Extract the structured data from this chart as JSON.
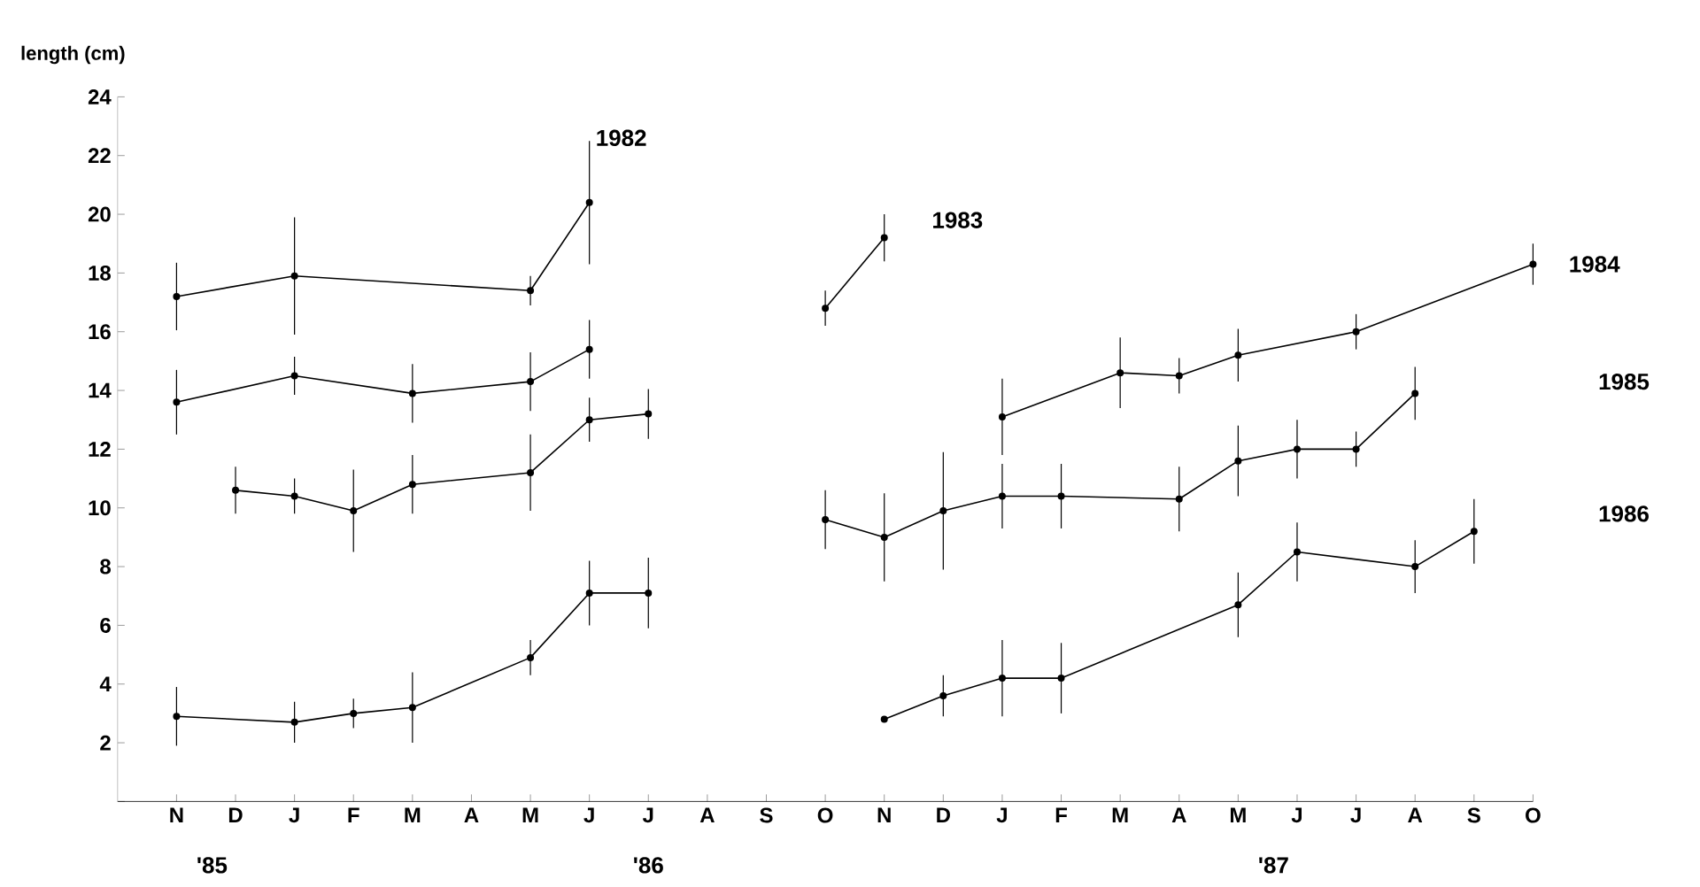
{
  "chart_data": {
    "type": "line",
    "ylabel": "length (cm)",
    "categories": [
      "N",
      "D",
      "J",
      "F",
      "M",
      "A",
      "M",
      "J",
      "J",
      "A",
      "S",
      "O",
      "N",
      "D",
      "J",
      "F",
      "M",
      "A",
      "M",
      "J",
      "J",
      "A",
      "S",
      "O"
    ],
    "ylim": [
      0,
      24
    ],
    "yticks": [
      {
        "value": 0,
        "label": null
      },
      2,
      4,
      6,
      8,
      10,
      12,
      14,
      16,
      18,
      20,
      22,
      24
    ],
    "marker": "circle",
    "line_style": "solid",
    "grid": false,
    "series": [
      {
        "name": "1982",
        "color": "#000000",
        "values": [
          17.2,
          null,
          17.9,
          null,
          null,
          null,
          17.4,
          20.4,
          null,
          null,
          null,
          null,
          null,
          null,
          null,
          null,
          null,
          null,
          null,
          null,
          null,
          null,
          null,
          null
        ],
        "errors": [
          1.15,
          null,
          2,
          null,
          null,
          null,
          0.5,
          2.1,
          null,
          null,
          null,
          null,
          null,
          null,
          null,
          null,
          null,
          null,
          null,
          null,
          null,
          null,
          null,
          null
        ]
      },
      {
        "color": "#000000",
        "values": [
          13.6,
          null,
          14.5,
          null,
          13.9,
          null,
          14.3,
          15.4,
          null,
          null,
          null,
          null,
          null,
          null,
          null,
          null,
          null,
          null,
          null,
          null,
          null,
          null,
          null,
          null
        ],
        "errors": [
          1.1,
          null,
          0.65,
          null,
          1,
          null,
          1,
          1,
          null,
          null,
          null,
          null,
          null,
          null,
          null,
          null,
          null,
          null,
          null,
          null,
          null,
          null,
          null,
          null
        ]
      },
      {
        "color": "#000000",
        "values": [
          null,
          10.6,
          10.4,
          9.9,
          10.8,
          null,
          11.2,
          13.0,
          13.2,
          null,
          null,
          null,
          null,
          null,
          null,
          null,
          null,
          null,
          null,
          null,
          null,
          null,
          null,
          null
        ],
        "errors": [
          null,
          0.8,
          0.6,
          1.4,
          1,
          null,
          1.3,
          0.75,
          0.85,
          null,
          null,
          null,
          null,
          null,
          null,
          null,
          null,
          null,
          null,
          null,
          null,
          null,
          null,
          null
        ]
      },
      {
        "color": "#000000",
        "values": [
          2.9,
          null,
          2.7,
          3.0,
          3.2,
          null,
          4.9,
          7.1,
          7.1,
          null,
          null,
          null,
          null,
          null,
          null,
          null,
          null,
          null,
          null,
          null,
          null,
          null,
          null,
          null
        ],
        "errors": [
          1,
          null,
          0.7,
          0.5,
          1.2,
          null,
          0.6,
          1.1,
          1.2,
          null,
          null,
          null,
          null,
          null,
          null,
          null,
          null,
          null,
          null,
          null,
          null,
          null,
          null,
          null
        ]
      },
      {
        "name": "1983",
        "color": "#000000",
        "values": [
          null,
          null,
          null,
          null,
          null,
          null,
          null,
          null,
          null,
          null,
          null,
          16.8,
          19.2,
          null,
          null,
          null,
          null,
          null,
          null,
          null,
          null,
          null,
          null,
          null
        ],
        "errors": [
          null,
          null,
          null,
          null,
          null,
          null,
          null,
          null,
          null,
          null,
          null,
          0.6,
          0.8,
          null,
          null,
          null,
          null,
          null,
          null,
          null,
          null,
          null,
          null,
          null
        ]
      },
      {
        "name": "1984",
        "color": "#000000",
        "values": [
          null,
          null,
          null,
          null,
          null,
          null,
          null,
          null,
          null,
          null,
          null,
          null,
          null,
          null,
          13.1,
          null,
          14.6,
          14.5,
          15.2,
          null,
          16.0,
          null,
          null,
          18.3
        ],
        "errors": [
          null,
          null,
          null,
          null,
          null,
          null,
          null,
          null,
          null,
          null,
          null,
          null,
          null,
          null,
          1.3,
          null,
          1.2,
          0.6,
          0.9,
          null,
          0.6,
          null,
          null,
          0.7
        ]
      },
      {
        "name": "1985",
        "color": "#000000",
        "values": [
          null,
          null,
          null,
          null,
          null,
          null,
          null,
          null,
          null,
          null,
          null,
          9.6,
          9.0,
          9.9,
          10.4,
          10.4,
          null,
          10.3,
          11.6,
          12.0,
          12.0,
          13.9,
          null,
          null
        ],
        "errors": [
          null,
          null,
          null,
          null,
          null,
          null,
          null,
          null,
          null,
          null,
          null,
          1,
          1.5,
          2,
          1.1,
          1.1,
          null,
          1.1,
          1.2,
          1,
          0.6,
          0.9,
          null,
          null
        ]
      },
      {
        "name": "1986",
        "color": "#000000",
        "values": [
          null,
          null,
          null,
          null,
          null,
          null,
          null,
          null,
          null,
          null,
          null,
          null,
          2.8,
          3.6,
          4.2,
          4.2,
          null,
          null,
          6.7,
          8.5,
          null,
          8.0,
          9.2,
          null
        ],
        "errors": [
          null,
          null,
          null,
          null,
          null,
          null,
          null,
          null,
          null,
          null,
          null,
          null,
          null,
          0.7,
          1.3,
          1.2,
          null,
          null,
          1.1,
          1,
          null,
          0.9,
          1.1,
          null
        ]
      }
    ],
    "annotations": [
      "'85",
      "'86",
      "'87"
    ]
  }
}
